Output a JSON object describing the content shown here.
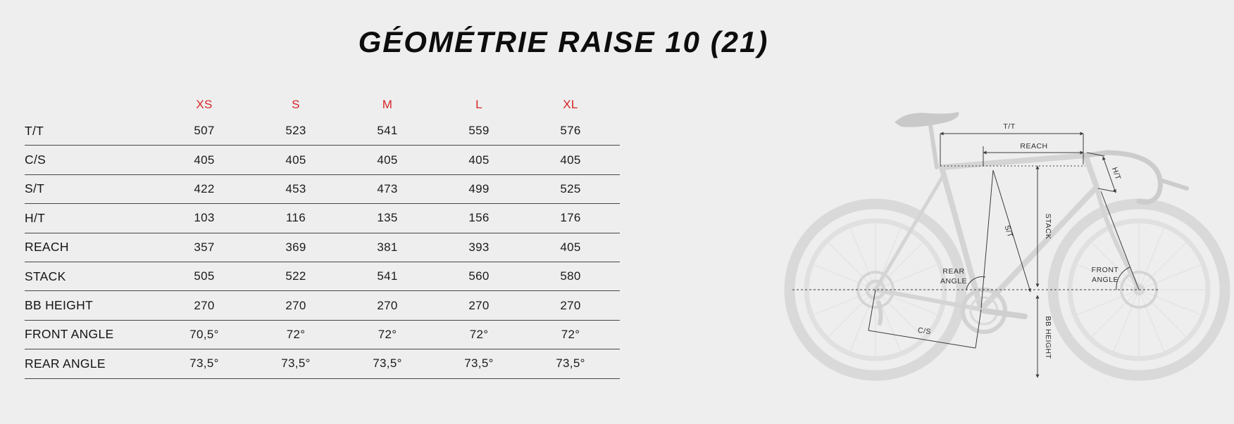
{
  "title": "GÉOMÉTRIE RAISE 10 (21)",
  "table": {
    "size_headers": [
      "XS",
      "S",
      "M",
      "L",
      "XL"
    ],
    "rows": [
      {
        "label": "T/T",
        "values": [
          "507",
          "523",
          "541",
          "559",
          "576"
        ]
      },
      {
        "label": "C/S",
        "values": [
          "405",
          "405",
          "405",
          "405",
          "405"
        ]
      },
      {
        "label": "S/T",
        "values": [
          "422",
          "453",
          "473",
          "499",
          "525"
        ]
      },
      {
        "label": "H/T",
        "values": [
          "103",
          "116",
          "135",
          "156",
          "176"
        ]
      },
      {
        "label": "REACH",
        "values": [
          "357",
          "369",
          "381",
          "393",
          "405"
        ]
      },
      {
        "label": "STACK",
        "values": [
          "505",
          "522",
          "541",
          "560",
          "580"
        ]
      },
      {
        "label": "BB HEIGHT",
        "values": [
          "270",
          "270",
          "270",
          "270",
          "270"
        ]
      },
      {
        "label": "FRONT ANGLE",
        "values": [
          "70,5°",
          "72°",
          "72°",
          "72°",
          "72°"
        ]
      },
      {
        "label": "REAR ANGLE",
        "values": [
          "73,5°",
          "73,5°",
          "73,5°",
          "73,5°",
          "73,5°"
        ]
      }
    ]
  },
  "diagram": {
    "labels": {
      "tt": "T/T",
      "reach": "REACH",
      "ht": "H/T",
      "st": "S/T",
      "stack": "STACK",
      "rear_angle_line1": "REAR",
      "rear_angle_line2": "ANGLE",
      "front_angle_line1": "FRONT",
      "front_angle_line2": "ANGLE",
      "cs": "C/S",
      "bb_height": "BB HEIGHT"
    }
  },
  "colors": {
    "background": "#eeeeee",
    "accent_red": "#d6252a",
    "text": "#161616",
    "row_separator": "#454545",
    "annotation_line": "#3c3c3c",
    "bike_silhouette": "#d6d6d6"
  }
}
